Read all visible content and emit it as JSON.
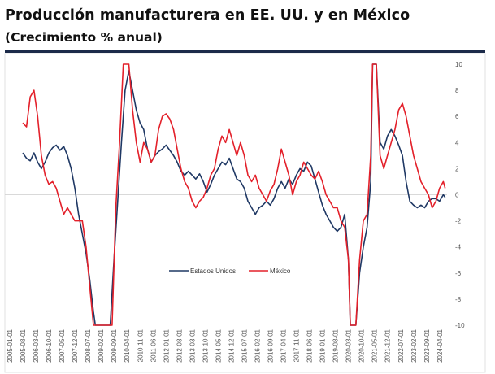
{
  "header": {
    "title": "Producción manufacturera en EE. UU. y en México",
    "subtitle": "(Crecimiento % anual)"
  },
  "colors": {
    "us": "#1f3864",
    "mexico": "#e3202a",
    "rule": "#1c2b4a"
  },
  "chart_data": {
    "type": "line",
    "title": "Producción manufacturera en EE. UU. y en México",
    "subtitle": "(Crecimiento % anual)",
    "ylim": [
      -10,
      10
    ],
    "y_ticks": [
      "10",
      "8",
      "6",
      "4",
      "2",
      "0",
      "-2",
      "-4",
      "-6",
      "-8",
      "-10"
    ],
    "y_axis_position": "right",
    "x_ticks": [
      "2005-01-01",
      "2005-08-01",
      "2006-03-01",
      "2006-10-01",
      "2007-05-01",
      "2007-12-01",
      "2008-07-01",
      "2009-02-01",
      "2009-09-01",
      "2010-04-01",
      "2010-11-01",
      "2011-06-01",
      "2012-01-01",
      "2012-08-01",
      "2013-03-01",
      "2013-10-01",
      "2014-05-01",
      "2014-12-01",
      "2015-07-01",
      "2016-02-01",
      "2016-09-01",
      "2017-04-01",
      "2017-11-01",
      "2018-06-01",
      "2019-01-01",
      "2019-08-01",
      "2020-03-01",
      "2020-10-01",
      "2021-05-01",
      "2021-12-01",
      "2022-07-01",
      "2023-02-01",
      "2023-09-01",
      "2024-04-01"
    ],
    "legend_position": "center",
    "grid": false,
    "series": [
      {
        "name": "Estados Unidos",
        "color": "#1f3864",
        "points": [
          [
            "2005-08-01",
            3.2
          ],
          [
            "2005-10-01",
            2.8
          ],
          [
            "2005-12-01",
            2.6
          ],
          [
            "2006-02-01",
            3.2
          ],
          [
            "2006-04-01",
            2.5
          ],
          [
            "2006-06-01",
            2.0
          ],
          [
            "2006-08-01",
            2.5
          ],
          [
            "2006-10-01",
            3.2
          ],
          [
            "2006-12-01",
            3.6
          ],
          [
            "2007-02-01",
            3.8
          ],
          [
            "2007-04-01",
            3.4
          ],
          [
            "2007-06-01",
            3.7
          ],
          [
            "2007-08-01",
            3.0
          ],
          [
            "2007-10-01",
            2.0
          ],
          [
            "2007-12-01",
            0.5
          ],
          [
            "2008-02-01",
            -1.5
          ],
          [
            "2008-04-01",
            -3.0
          ],
          [
            "2008-06-01",
            -4.5
          ],
          [
            "2008-08-01",
            -6.5
          ],
          [
            "2008-10-01",
            -9.0
          ],
          [
            "2008-11-01",
            -10.0
          ],
          [
            "2009-01-01",
            -10.0
          ],
          [
            "2009-05-01",
            -10.0
          ],
          [
            "2009-07-01",
            -10.0
          ],
          [
            "2009-09-01",
            -5.0
          ],
          [
            "2009-11-01",
            -0.5
          ],
          [
            "2010-01-01",
            4.0
          ],
          [
            "2010-03-01",
            8.0
          ],
          [
            "2010-05-01",
            9.5
          ],
          [
            "2010-07-01",
            8.0
          ],
          [
            "2010-09-01",
            6.5
          ],
          [
            "2010-11-01",
            5.5
          ],
          [
            "2011-01-01",
            5.0
          ],
          [
            "2011-03-01",
            3.5
          ],
          [
            "2011-05-01",
            2.5
          ],
          [
            "2011-07-01",
            3.0
          ],
          [
            "2011-09-01",
            3.3
          ],
          [
            "2011-11-01",
            3.5
          ],
          [
            "2012-01-01",
            3.8
          ],
          [
            "2012-03-01",
            3.4
          ],
          [
            "2012-05-01",
            3.0
          ],
          [
            "2012-07-01",
            2.5
          ],
          [
            "2012-09-01",
            1.8
          ],
          [
            "2012-11-01",
            1.5
          ],
          [
            "2013-01-01",
            1.8
          ],
          [
            "2013-03-01",
            1.5
          ],
          [
            "2013-05-01",
            1.2
          ],
          [
            "2013-07-01",
            1.6
          ],
          [
            "2013-09-01",
            1.0
          ],
          [
            "2013-11-01",
            0.2
          ],
          [
            "2014-01-01",
            0.8
          ],
          [
            "2014-03-01",
            1.5
          ],
          [
            "2014-05-01",
            2.0
          ],
          [
            "2014-07-01",
            2.5
          ],
          [
            "2014-09-01",
            2.3
          ],
          [
            "2014-11-01",
            2.8
          ],
          [
            "2015-01-01",
            2.0
          ],
          [
            "2015-03-01",
            1.2
          ],
          [
            "2015-05-01",
            1.0
          ],
          [
            "2015-07-01",
            0.5
          ],
          [
            "2015-09-01",
            -0.5
          ],
          [
            "2015-11-01",
            -1.0
          ],
          [
            "2016-01-01",
            -1.5
          ],
          [
            "2016-03-01",
            -1.0
          ],
          [
            "2016-05-01",
            -0.8
          ],
          [
            "2016-07-01",
            -0.5
          ],
          [
            "2016-09-01",
            -0.8
          ],
          [
            "2016-11-01",
            -0.3
          ],
          [
            "2017-01-01",
            0.5
          ],
          [
            "2017-03-01",
            1.0
          ],
          [
            "2017-05-01",
            0.5
          ],
          [
            "2017-07-01",
            1.2
          ],
          [
            "2017-09-01",
            0.8
          ],
          [
            "2017-11-01",
            1.5
          ],
          [
            "2018-01-01",
            2.0
          ],
          [
            "2018-03-01",
            1.8
          ],
          [
            "2018-05-01",
            2.5
          ],
          [
            "2018-07-01",
            2.2
          ],
          [
            "2018-09-01",
            1.2
          ],
          [
            "2018-11-01",
            0.2
          ],
          [
            "2019-01-01",
            -0.8
          ],
          [
            "2019-03-01",
            -1.5
          ],
          [
            "2019-05-01",
            -2.0
          ],
          [
            "2019-07-01",
            -2.5
          ],
          [
            "2019-09-01",
            -2.8
          ],
          [
            "2019-11-01",
            -2.5
          ],
          [
            "2020-01-01",
            -1.5
          ],
          [
            "2020-03-01",
            -5.0
          ],
          [
            "2020-04-01",
            -10.0
          ],
          [
            "2020-07-01",
            -10.0
          ],
          [
            "2020-09-01",
            -6.0
          ],
          [
            "2020-11-01",
            -4.0
          ],
          [
            "2021-01-01",
            -2.5
          ],
          [
            "2021-03-01",
            1.0
          ],
          [
            "2021-04-01",
            10.0
          ],
          [
            "2021-06-01",
            10.0
          ],
          [
            "2021-08-01",
            4.0
          ],
          [
            "2021-10-01",
            3.5
          ],
          [
            "2021-12-01",
            4.5
          ],
          [
            "2022-02-01",
            5.0
          ],
          [
            "2022-04-01",
            4.5
          ],
          [
            "2022-06-01",
            3.8
          ],
          [
            "2022-08-01",
            3.0
          ],
          [
            "2022-10-01",
            1.0
          ],
          [
            "2022-12-01",
            -0.5
          ],
          [
            "2023-02-01",
            -0.8
          ],
          [
            "2023-04-01",
            -1.0
          ],
          [
            "2023-06-01",
            -0.8
          ],
          [
            "2023-08-01",
            -1.0
          ],
          [
            "2023-10-01",
            -0.5
          ],
          [
            "2023-12-01",
            -0.3
          ],
          [
            "2024-02-01",
            -0.3
          ],
          [
            "2024-04-01",
            -0.5
          ],
          [
            "2024-06-01",
            0.0
          ],
          [
            "2024-07-01",
            -0.2
          ]
        ]
      },
      {
        "name": "México",
        "color": "#e3202a",
        "points": [
          [
            "2005-08-01",
            5.5
          ],
          [
            "2005-10-01",
            5.2
          ],
          [
            "2005-12-01",
            7.5
          ],
          [
            "2006-02-01",
            8.0
          ],
          [
            "2006-04-01",
            6.0
          ],
          [
            "2006-06-01",
            3.0
          ],
          [
            "2006-08-01",
            1.5
          ],
          [
            "2006-10-01",
            0.8
          ],
          [
            "2006-12-01",
            1.0
          ],
          [
            "2007-02-01",
            0.5
          ],
          [
            "2007-04-01",
            -0.5
          ],
          [
            "2007-06-01",
            -1.5
          ],
          [
            "2007-08-01",
            -1.0
          ],
          [
            "2007-10-01",
            -1.5
          ],
          [
            "2007-12-01",
            -2.0
          ],
          [
            "2008-02-01",
            -2.0
          ],
          [
            "2008-04-01",
            -2.0
          ],
          [
            "2008-06-01",
            -4.0
          ],
          [
            "2008-08-01",
            -7.0
          ],
          [
            "2008-10-01",
            -10.0
          ],
          [
            "2009-01-01",
            -10.0
          ],
          [
            "2009-06-01",
            -10.0
          ],
          [
            "2009-08-01",
            -10.0
          ],
          [
            "2009-10-01",
            -1.0
          ],
          [
            "2009-12-01",
            4.0
          ],
          [
            "2010-02-01",
            10.0
          ],
          [
            "2010-05-01",
            10.0
          ],
          [
            "2010-07-01",
            6.5
          ],
          [
            "2010-09-01",
            4.0
          ],
          [
            "2010-11-01",
            2.5
          ],
          [
            "2011-01-01",
            4.0
          ],
          [
            "2011-03-01",
            3.5
          ],
          [
            "2011-05-01",
            2.5
          ],
          [
            "2011-07-01",
            3.0
          ],
          [
            "2011-09-01",
            5.0
          ],
          [
            "2011-11-01",
            6.0
          ],
          [
            "2012-01-01",
            6.2
          ],
          [
            "2012-03-01",
            5.8
          ],
          [
            "2012-05-01",
            5.0
          ],
          [
            "2012-07-01",
            3.5
          ],
          [
            "2012-09-01",
            2.0
          ],
          [
            "2012-11-01",
            1.0
          ],
          [
            "2013-01-01",
            0.5
          ],
          [
            "2013-03-01",
            -0.5
          ],
          [
            "2013-05-01",
            -1.0
          ],
          [
            "2013-07-01",
            -0.5
          ],
          [
            "2013-09-01",
            -0.2
          ],
          [
            "2013-11-01",
            0.5
          ],
          [
            "2014-01-01",
            1.5
          ],
          [
            "2014-03-01",
            2.0
          ],
          [
            "2014-05-01",
            3.5
          ],
          [
            "2014-07-01",
            4.5
          ],
          [
            "2014-09-01",
            4.0
          ],
          [
            "2014-11-01",
            5.0
          ],
          [
            "2015-01-01",
            4.0
          ],
          [
            "2015-03-01",
            3.0
          ],
          [
            "2015-05-01",
            4.0
          ],
          [
            "2015-07-01",
            3.0
          ],
          [
            "2015-09-01",
            1.5
          ],
          [
            "2015-11-01",
            1.0
          ],
          [
            "2016-01-01",
            1.5
          ],
          [
            "2016-03-01",
            0.5
          ],
          [
            "2016-05-01",
            0.0
          ],
          [
            "2016-07-01",
            -0.5
          ],
          [
            "2016-09-01",
            0.3
          ],
          [
            "2016-11-01",
            0.8
          ],
          [
            "2017-01-01",
            2.0
          ],
          [
            "2017-03-01",
            3.5
          ],
          [
            "2017-05-01",
            2.5
          ],
          [
            "2017-07-01",
            1.5
          ],
          [
            "2017-09-01",
            0.0
          ],
          [
            "2017-11-01",
            1.0
          ],
          [
            "2018-01-01",
            1.5
          ],
          [
            "2018-03-01",
            2.5
          ],
          [
            "2018-05-01",
            2.0
          ],
          [
            "2018-07-01",
            1.5
          ],
          [
            "2018-09-01",
            1.2
          ],
          [
            "2018-11-01",
            1.8
          ],
          [
            "2019-01-01",
            1.0
          ],
          [
            "2019-03-01",
            0.0
          ],
          [
            "2019-05-01",
            -0.5
          ],
          [
            "2019-07-01",
            -1.0
          ],
          [
            "2019-09-01",
            -1.0
          ],
          [
            "2019-11-01",
            -2.0
          ],
          [
            "2020-01-01",
            -2.5
          ],
          [
            "2020-03-01",
            -5.0
          ],
          [
            "2020-04-01",
            -10.0
          ],
          [
            "2020-07-01",
            -10.0
          ],
          [
            "2020-09-01",
            -5.0
          ],
          [
            "2020-11-01",
            -2.0
          ],
          [
            "2021-01-01",
            -1.5
          ],
          [
            "2021-03-01",
            3.0
          ],
          [
            "2021-04-01",
            10.0
          ],
          [
            "2021-06-01",
            10.0
          ],
          [
            "2021-08-01",
            3.0
          ],
          [
            "2021-10-01",
            2.0
          ],
          [
            "2021-12-01",
            3.0
          ],
          [
            "2022-02-01",
            4.0
          ],
          [
            "2022-04-01",
            5.0
          ],
          [
            "2022-06-01",
            6.5
          ],
          [
            "2022-08-01",
            7.0
          ],
          [
            "2022-10-01",
            6.0
          ],
          [
            "2022-12-01",
            4.5
          ],
          [
            "2023-02-01",
            3.0
          ],
          [
            "2023-04-01",
            2.0
          ],
          [
            "2023-06-01",
            1.0
          ],
          [
            "2023-08-01",
            0.5
          ],
          [
            "2023-10-01",
            0.0
          ],
          [
            "2023-12-01",
            -1.0
          ],
          [
            "2024-02-01",
            -0.5
          ],
          [
            "2024-04-01",
            0.5
          ],
          [
            "2024-06-01",
            1.0
          ],
          [
            "2024-07-01",
            0.5
          ]
        ]
      }
    ]
  }
}
